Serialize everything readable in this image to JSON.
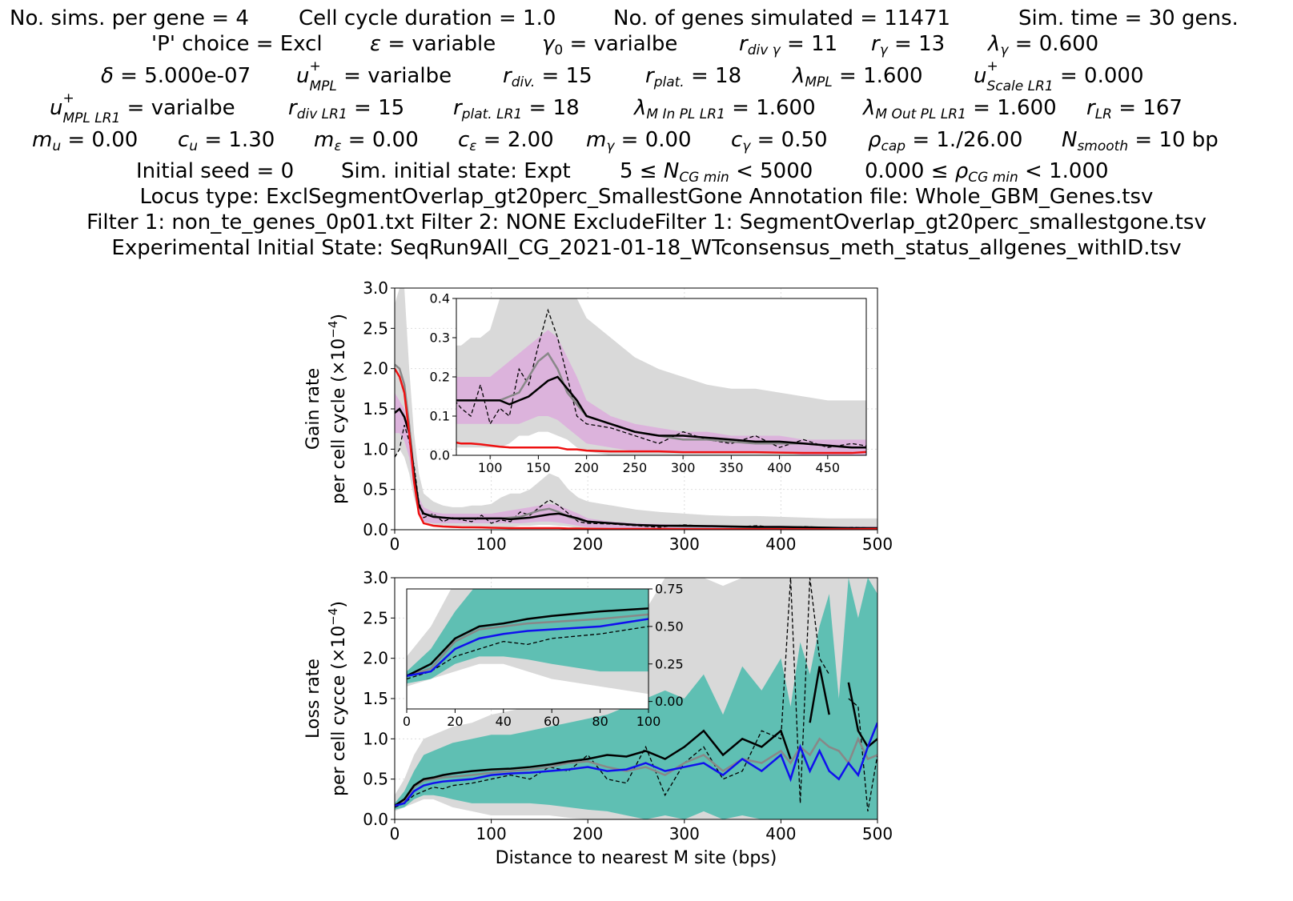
{
  "header": {
    "row1": [
      "No. sims. per gene = 4",
      "Cell cycle duration = 1.0",
      "No. of genes simulated = 11471",
      "Sim. time = 30 gens."
    ],
    "row2": [
      {
        "text": "'P' choice = Excl"
      },
      {
        "sym": "ε",
        "sub": "",
        "sup": "",
        "val": " = variable"
      },
      {
        "sym": "γ",
        "sub0": "0",
        "val": " = varialbe"
      },
      {
        "sym": "r",
        "sub": "div γ",
        "val": " =  11"
      },
      {
        "sym": "r",
        "sub": "γ",
        "val": " = 13"
      },
      {
        "sym": "λ",
        "sub": "γ",
        "val": " =  0.600"
      }
    ],
    "row3": [
      {
        "sym": "δ",
        "sub": "",
        "val": " = 5.000e-07"
      },
      {
        "sym": "u",
        "sub": "MPL",
        "sup": "+",
        "val": " =  varialbe"
      },
      {
        "sym": "r",
        "sub": "div.",
        "val": " =  15"
      },
      {
        "sym": "r",
        "sub": "plat.",
        "val": " =  18"
      },
      {
        "sym": "λ",
        "sub": "MPL",
        "val": " =  1.600"
      },
      {
        "sym": "u",
        "sub": "Scale LR1",
        "sup": "+",
        "val": " =  0.000"
      }
    ],
    "row4": [
      {
        "sym": "u",
        "sub": "MPL LR1",
        "sup": "+",
        "val": " =  varialbe"
      },
      {
        "sym": "r",
        "sub": "div LR1",
        "val": " =  15"
      },
      {
        "sym": "r",
        "sub": "plat. LR1",
        "val": " =  18"
      },
      {
        "sym": "λ",
        "sub": "M In PL LR1",
        "val": " =  1.600"
      },
      {
        "sym": "λ",
        "sub": "M Out PL LR1",
        "val": " =  1.600"
      },
      {
        "sym": "r",
        "sub": "LR",
        "val": " =  167"
      }
    ],
    "row5": [
      {
        "sym": "m",
        "sub": "u",
        "val": " = 0.00"
      },
      {
        "sym": "c",
        "sub": "u",
        "val": " = 1.30"
      },
      {
        "sym": "m",
        "sub": "ε",
        "val": " = 0.00"
      },
      {
        "sym": "c",
        "sub": "ε",
        "val": " = 2.00"
      },
      {
        "sym": "m",
        "sub": "γ",
        "val": " = 0.00"
      },
      {
        "sym": "c",
        "sub": "γ",
        "val": " = 0.50"
      },
      {
        "sym": "ρ",
        "sub": "cap",
        "val": " = 1./26.00"
      },
      {
        "sym": "N",
        "sub": "smooth",
        "val": " = 10 bp"
      }
    ],
    "row6": {
      "a": "Initial seed = 0",
      "b": "Sim. initial state: Expt",
      "c_pre": "5  ≤",
      "c_sym": "N",
      "c_sub": "CG min",
      "c_post": " < 5000",
      "d_pre": "0.000  ≤",
      "d_sym": "ρ",
      "d_sub": "CG min",
      "d_post": " < 1.000"
    },
    "row7": "Locus type: ExclSegmentOverlap_gt20perc_SmallestGone      Annotation file: Whole_GBM_Genes.tsv",
    "row8": "Filter 1: non_te_genes_0p01.txt      Filter 2: NONE      ExcludeFilter 1: SegmentOverlap_gt20perc_smallestgone.tsv",
    "row9": "Experimental Initial State: SeqRun9All_CG_2021-01-18_WTconsensus_meth_status_allgenes_withID.tsv"
  },
  "colors": {
    "grey_band": "#d9d9d9",
    "purple_band": "#dcb3dc",
    "teal_band": "#5fbfb3",
    "red": "#ee1111",
    "blue": "#1010ee",
    "black": "#000000",
    "grey_line": "#888888"
  },
  "chart_data": [
    {
      "type": "line",
      "id": "gain",
      "ylabel_line1": "Gain rate",
      "ylabel_line2_pre": "per cell cycle (×10",
      "ylabel_sup": "−4",
      "ylabel_line2_post": ")",
      "xlim": [
        0,
        500
      ],
      "ylim": [
        0,
        3.0
      ],
      "xticks": [
        "0",
        "100",
        "200",
        "300",
        "400",
        "500"
      ],
      "yticks": [
        "0.0",
        "0.5",
        "1.0",
        "1.5",
        "2.0",
        "2.5",
        "3.0"
      ],
      "grid": true,
      "x": [
        0,
        5,
        10,
        15,
        20,
        25,
        30,
        40,
        50,
        60,
        70,
        80,
        90,
        100,
        110,
        120,
        130,
        140,
        150,
        160,
        170,
        180,
        190,
        200,
        225,
        250,
        275,
        300,
        325,
        350,
        375,
        400,
        425,
        450,
        475,
        500
      ],
      "band_grey_hi": [
        2.8,
        3.0,
        3.0,
        2.0,
        1.2,
        0.7,
        0.45,
        0.35,
        0.3,
        0.28,
        0.28,
        0.3,
        0.3,
        0.32,
        0.4,
        0.45,
        0.45,
        0.5,
        0.6,
        0.7,
        0.65,
        0.5,
        0.4,
        0.35,
        0.3,
        0.25,
        0.22,
        0.2,
        0.18,
        0.17,
        0.17,
        0.16,
        0.15,
        0.14,
        0.14,
        0.14
      ],
      "band_grey_lo": [
        0.9,
        1.0,
        0.9,
        0.7,
        0.4,
        0.2,
        0.1,
        0.05,
        0.03,
        0.02,
        0.02,
        0.02,
        0.02,
        0.02,
        0.02,
        0.03,
        0.05,
        0.05,
        0.06,
        0.06,
        0.05,
        0.04,
        0.02,
        0.01,
        0.0,
        0.0,
        0.0,
        0.0,
        0.0,
        0.0,
        0.0,
        0.0,
        0.0,
        0.0,
        0.0,
        0.0
      ],
      "band_purple_hi": [
        1.7,
        1.6,
        1.5,
        1.2,
        0.8,
        0.4,
        0.28,
        0.22,
        0.2,
        0.2,
        0.2,
        0.2,
        0.2,
        0.2,
        0.22,
        0.24,
        0.26,
        0.28,
        0.3,
        0.32,
        0.3,
        0.25,
        0.2,
        0.14,
        0.1,
        0.08,
        0.07,
        0.06,
        0.06,
        0.05,
        0.05,
        0.05,
        0.04,
        0.04,
        0.04,
        0.04
      ],
      "band_purple_lo": [
        1.2,
        1.2,
        1.1,
        0.9,
        0.5,
        0.2,
        0.1,
        0.08,
        0.08,
        0.08,
        0.08,
        0.08,
        0.08,
        0.08,
        0.08,
        0.08,
        0.08,
        0.09,
        0.1,
        0.1,
        0.09,
        0.07,
        0.05,
        0.03,
        0.02,
        0.01,
        0.01,
        0.01,
        0.01,
        0.01,
        0.01,
        0.01,
        0.0,
        0.0,
        0.0,
        0.0
      ],
      "series": [
        {
          "key": "red",
          "values": [
            2.0,
            1.9,
            1.7,
            1.2,
            0.6,
            0.2,
            0.08,
            0.05,
            0.04,
            0.035,
            0.03,
            0.03,
            0.028,
            0.025,
            0.022,
            0.02,
            0.02,
            0.02,
            0.02,
            0.02,
            0.02,
            0.015,
            0.015,
            0.012,
            0.01,
            0.01,
            0.01,
            0.008,
            0.008,
            0.008,
            0.008,
            0.007,
            0.006,
            0.006,
            0.006,
            0.01
          ]
        },
        {
          "key": "grey",
          "values": [
            2.05,
            2.0,
            1.8,
            1.3,
            0.7,
            0.3,
            0.2,
            0.17,
            0.15,
            0.14,
            0.14,
            0.14,
            0.14,
            0.14,
            0.14,
            0.15,
            0.16,
            0.2,
            0.24,
            0.26,
            0.22,
            0.16,
            0.13,
            0.1,
            0.08,
            0.06,
            0.05,
            0.04,
            0.04,
            0.035,
            0.03,
            0.03,
            0.03,
            0.025,
            0.02,
            0.02
          ]
        },
        {
          "key": "black",
          "values": [
            1.45,
            1.5,
            1.4,
            1.2,
            0.7,
            0.3,
            0.2,
            0.16,
            0.15,
            0.14,
            0.14,
            0.14,
            0.14,
            0.14,
            0.14,
            0.13,
            0.14,
            0.15,
            0.17,
            0.19,
            0.2,
            0.17,
            0.14,
            0.1,
            0.08,
            0.06,
            0.05,
            0.05,
            0.045,
            0.04,
            0.035,
            0.035,
            0.03,
            0.025,
            0.02,
            0.02
          ]
        },
        {
          "key": "dashed",
          "values": [
            0.9,
            1.0,
            1.3,
            1.1,
            0.8,
            0.35,
            0.15,
            0.2,
            0.1,
            0.15,
            0.12,
            0.1,
            0.18,
            0.08,
            0.12,
            0.1,
            0.22,
            0.18,
            0.28,
            0.37,
            0.3,
            0.2,
            0.1,
            0.08,
            0.07,
            0.05,
            0.03,
            0.06,
            0.04,
            0.03,
            0.05,
            0.02,
            0.04,
            0.02,
            0.03,
            0.02
          ]
        }
      ],
      "inset": {
        "xlim": [
          65,
          490
        ],
        "ylim": [
          0,
          0.4
        ],
        "xticks": [
          "100",
          "150",
          "200",
          "250",
          "300",
          "350",
          "400",
          "450"
        ],
        "yticks": [
          "0.0",
          "0.1",
          "0.2",
          "0.3",
          "0.4"
        ]
      }
    },
    {
      "type": "line",
      "id": "loss",
      "ylabel_line1": "Loss rate",
      "ylabel_line2_pre": "per cell cycce (×10",
      "ylabel_sup": "−4",
      "ylabel_line2_post": ")",
      "xlabel": "Distance to nearest M site (bps)",
      "xlim": [
        0,
        500
      ],
      "ylim": [
        0,
        3.0
      ],
      "xticks": [
        "0",
        "100",
        "200",
        "300",
        "400",
        "500"
      ],
      "yticks": [
        "0.0",
        "0.5",
        "1.0",
        "1.5",
        "2.0",
        "2.5",
        "3.0"
      ],
      "grid": true,
      "x": [
        0,
        10,
        20,
        30,
        40,
        50,
        60,
        80,
        100,
        120,
        140,
        160,
        180,
        200,
        220,
        240,
        260,
        280,
        300,
        320,
        340,
        360,
        380,
        400,
        410,
        420,
        430,
        440,
        450,
        460,
        470,
        480,
        490,
        500
      ],
      "band_grey_hi": [
        0.3,
        0.5,
        0.8,
        1.0,
        1.05,
        1.1,
        1.15,
        1.2,
        1.3,
        1.35,
        1.4,
        1.5,
        1.6,
        1.7,
        1.9,
        2.2,
        2.6,
        3.0,
        3.0,
        3.0,
        2.9,
        3.0,
        3.0,
        3.0,
        3.0,
        3.0,
        3.0,
        3.0,
        3.0,
        3.0,
        3.0,
        3.0,
        3.0,
        3.0
      ],
      "band_grey_lo": [
        0.1,
        0.15,
        0.2,
        0.25,
        0.25,
        0.2,
        0.15,
        0.1,
        0.05,
        0.05,
        0.05,
        0.05,
        0.02,
        0.0,
        0.0,
        0.0,
        0.0,
        0.0,
        0.0,
        0.0,
        0.0,
        0.0,
        0.0,
        0.0,
        0.0,
        0.0,
        0.0,
        0.0,
        0.0,
        0.0,
        0.0,
        0.0,
        0.0,
        0.0
      ],
      "band_teal_hi": [
        0.2,
        0.35,
        0.6,
        0.8,
        0.85,
        0.9,
        0.95,
        1.0,
        1.05,
        1.05,
        1.1,
        1.15,
        1.2,
        1.25,
        1.3,
        1.4,
        1.5,
        1.6,
        1.5,
        1.8,
        1.3,
        1.9,
        1.6,
        2.0,
        1.4,
        2.2,
        1.8,
        2.4,
        2.8,
        1.5,
        3.0,
        2.5,
        3.0,
        2.8
      ],
      "band_teal_lo": [
        0.12,
        0.15,
        0.25,
        0.3,
        0.3,
        0.28,
        0.25,
        0.2,
        0.2,
        0.2,
        0.2,
        0.18,
        0.15,
        0.12,
        0.1,
        0.05,
        0.0,
        0.05,
        0.0,
        0.1,
        0.0,
        0.05,
        0.0,
        0.0,
        0.0,
        0.0,
        0.0,
        0.0,
        0.0,
        0.0,
        0.0,
        0.0,
        0.0,
        0.0
      ],
      "series": [
        {
          "key": "blue",
          "values": [
            0.17,
            0.2,
            0.35,
            0.42,
            0.45,
            0.47,
            0.48,
            0.5,
            0.55,
            0.57,
            0.58,
            0.6,
            0.62,
            0.65,
            0.6,
            0.62,
            0.7,
            0.6,
            0.65,
            0.7,
            0.55,
            0.75,
            0.6,
            0.8,
            0.5,
            0.9,
            0.6,
            0.85,
            0.6,
            0.5,
            0.7,
            0.55,
            0.9,
            1.2
          ]
        },
        {
          "key": "grey",
          "values": [
            0.17,
            0.22,
            0.4,
            0.48,
            0.5,
            0.52,
            0.53,
            0.55,
            0.58,
            0.6,
            0.62,
            0.65,
            0.7,
            0.72,
            0.65,
            0.6,
            0.65,
            0.55,
            0.7,
            0.8,
            0.6,
            0.75,
            0.7,
            0.85,
            0.7,
            0.9,
            0.8,
            1.0,
            0.9,
            0.85,
            0.7,
            1.0,
            0.75,
            0.8
          ]
        },
        {
          "key": "black",
          "values": [
            0.17,
            0.25,
            0.42,
            0.5,
            0.52,
            0.55,
            0.57,
            0.6,
            0.62,
            0.63,
            0.65,
            0.68,
            0.72,
            0.75,
            0.8,
            0.78,
            0.85,
            0.75,
            0.9,
            1.1,
            0.8,
            1.0,
            0.9,
            1.1,
            0.75,
            null,
            1.2,
            1.9,
            1.3,
            null,
            1.7,
            1.1,
            0.9,
            1.0
          ]
        },
        {
          "key": "dashed",
          "values": [
            0.15,
            0.2,
            0.3,
            0.35,
            0.4,
            0.38,
            0.42,
            0.45,
            0.5,
            0.55,
            0.5,
            0.65,
            0.6,
            0.8,
            0.5,
            0.45,
            0.9,
            0.3,
            0.7,
            0.9,
            0.5,
            0.6,
            1.1,
            1.0,
            3.0,
            0.2,
            3.0,
            2.0,
            1.8,
            null,
            1.5,
            1.4,
            0.1,
            0.8
          ]
        }
      ],
      "inset": {
        "xlim": [
          0,
          100
        ],
        "ylim": [
          -0.05,
          0.75
        ],
        "xticks": [
          "0",
          "20",
          "40",
          "60",
          "80",
          "100"
        ],
        "yticks": [
          "0.00",
          "0.25",
          "0.50",
          "0.75"
        ]
      }
    }
  ]
}
